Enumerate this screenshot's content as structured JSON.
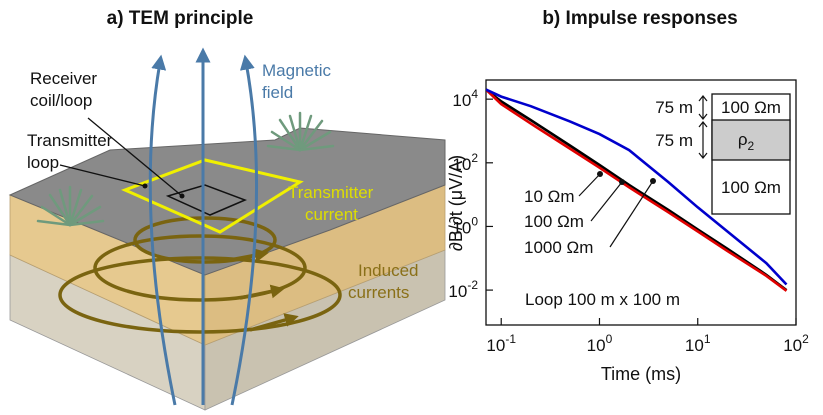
{
  "panel_a": {
    "title": "a) TEM principle",
    "labels": {
      "magnetic": "Magnetic",
      "field": "field",
      "receiver1": "Receiver",
      "receiver2": "coil/loop",
      "transmitter1": "Transmitter",
      "transmitter2": "loop",
      "tcurrent1": "Transmitter",
      "tcurrent2": "current",
      "induced1": "Induced",
      "induced2": "currents"
    },
    "colors": {
      "field_lines": "#4a7aa8",
      "transmitter_loop": "#f0f000",
      "induced_currents": "#7a6410",
      "ground_top": "#8a8a8a",
      "soil": "#e6c98f",
      "bedrock": "#d8d2c2"
    }
  },
  "panel_b": {
    "title": "b) Impulse responses",
    "annotation": "Loop 100 m x 100 m",
    "model": {
      "thickness_top": "75 m",
      "thickness_mid": "75 m",
      "rho_top": "100 Ωm",
      "rho_mid_symbol": "ρ",
      "rho_mid_subscript": "2",
      "rho_bottom": "100 Ωm"
    }
  },
  "chart_data": {
    "type": "line",
    "title": "b) Impulse responses",
    "xlabel": "Time (ms)",
    "ylabel": "∂B/∂t  (μV/A)",
    "xscale": "log",
    "yscale": "log",
    "xlim": [
      0.07,
      100
    ],
    "ylim": [
      0.0008,
      40000
    ],
    "xticks": [
      {
        "v": 0.1,
        "base": "10",
        "exp": "-1"
      },
      {
        "v": 1,
        "base": "10",
        "exp": "0"
      },
      {
        "v": 10,
        "base": "10",
        "exp": "1"
      },
      {
        "v": 100,
        "base": "10",
        "exp": "2"
      }
    ],
    "yticks": [
      {
        "v": 0.01,
        "base": "10",
        "exp": "-2"
      },
      {
        "v": 1,
        "base": "10",
        "exp": "0"
      },
      {
        "v": 100,
        "base": "10",
        "exp": "2"
      },
      {
        "v": 10000,
        "base": "10",
        "exp": "4"
      }
    ],
    "series": [
      {
        "name": "10 Ωm",
        "color": "#e00000",
        "x": [
          0.07,
          0.1,
          0.2,
          0.5,
          1,
          2,
          5,
          10,
          20,
          50,
          80
        ],
        "y": [
          20000,
          7000,
          1700,
          280,
          70,
          17,
          2.8,
          0.7,
          0.17,
          0.028,
          0.0095
        ]
      },
      {
        "name": "100 Ωm",
        "color": "#000000",
        "x": [
          0.07,
          0.1,
          0.2,
          0.5,
          1,
          2,
          5,
          10,
          20,
          50,
          80
        ],
        "y": [
          20000,
          8500,
          2200,
          350,
          85,
          20,
          3.3,
          0.8,
          0.2,
          0.03,
          0.01
        ]
      },
      {
        "name": "1000 Ωm",
        "color": "#0000cc",
        "x": [
          0.07,
          0.1,
          0.2,
          0.5,
          1,
          2,
          5,
          10,
          20,
          50,
          80
        ],
        "y": [
          20000,
          12000,
          6000,
          2000,
          800,
          250,
          25,
          4,
          0.7,
          0.07,
          0.015
        ]
      }
    ]
  }
}
